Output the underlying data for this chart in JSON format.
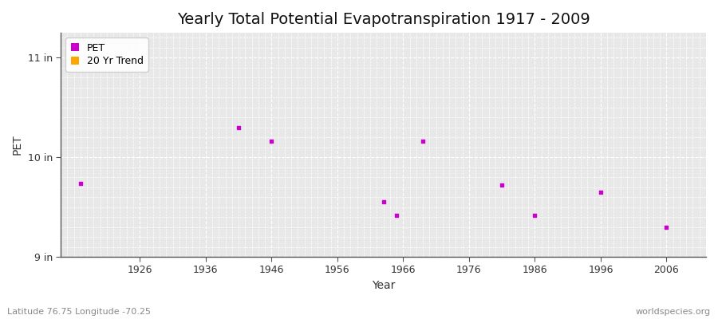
{
  "title": "Yearly Total Potential Evapotranspiration 1917 - 2009",
  "xlabel": "Year",
  "ylabel": "PET",
  "subtitle_left": "Latitude 76.75 Longitude -70.25",
  "subtitle_right": "worldspecies.org",
  "legend_entries": [
    "PET",
    "20 Yr Trend"
  ],
  "legend_colors": [
    "#cc00cc",
    "#ffa500"
  ],
  "pet_years": [
    1917,
    1941,
    1946,
    1963,
    1965,
    1969,
    1981,
    1986,
    1996,
    2006
  ],
  "pet_values": [
    9.74,
    10.3,
    10.16,
    9.55,
    9.42,
    10.16,
    9.72,
    9.42,
    9.65,
    9.3
  ],
  "ylim_bottom": 9.0,
  "ylim_top": 11.25,
  "xlim_left": 1914,
  "xlim_right": 2012,
  "yticks": [
    9.0,
    10.0,
    11.0
  ],
  "ytick_labels": [
    "9 in",
    "10 in",
    "11 in"
  ],
  "xticks": [
    1926,
    1936,
    1946,
    1956,
    1966,
    1976,
    1986,
    1996,
    2006
  ],
  "figure_bg_color": "#ffffff",
  "plot_bg_color": "#e8e8e8",
  "grid_color": "#ffffff",
  "marker_color": "#cc00cc",
  "marker_size": 12,
  "title_fontsize": 14
}
